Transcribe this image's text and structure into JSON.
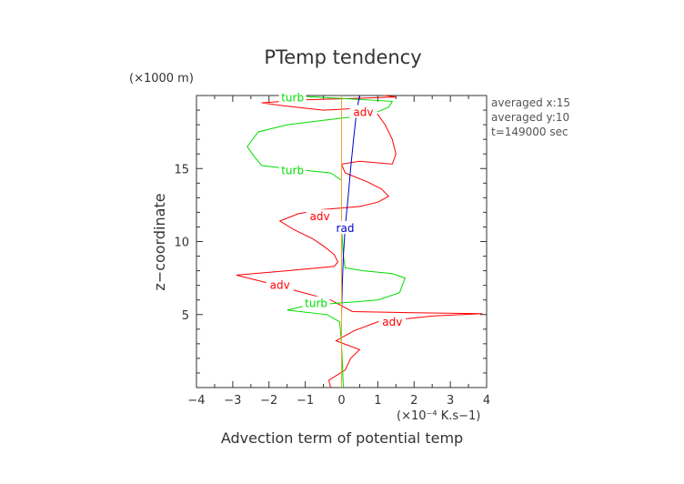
{
  "chart_data": {
    "type": "line",
    "title": "PTemp tendency",
    "xlabel": "Advection term of potential temp",
    "x_unit": "(×10⁻⁴ K.s−1)",
    "ylabel": "z−coordinate",
    "y_unit": "(×1000 m)",
    "xlim": [
      -4,
      4
    ],
    "ylim": [
      0,
      20
    ],
    "xticks": [
      -4,
      -3,
      -2,
      -1,
      0,
      1,
      2,
      3,
      4
    ],
    "yticks": [
      5,
      10,
      15
    ],
    "grid": false,
    "legend": "none",
    "info": [
      "averaged  x:15",
      "averaged  y:10",
      "t=149000 sec"
    ],
    "series": [
      {
        "name": "adv",
        "color": "#ff0000",
        "points": [
          [
            -0.3,
            0.0
          ],
          [
            -0.35,
            0.5
          ],
          [
            0.1,
            1.2
          ],
          [
            0.25,
            2.0
          ],
          [
            0.5,
            2.6
          ],
          [
            -0.15,
            3.2
          ],
          [
            0.35,
            3.9
          ],
          [
            1.0,
            4.5
          ],
          [
            2.5,
            4.9
          ],
          [
            3.88,
            5.06
          ],
          [
            2.0,
            5.12
          ],
          [
            0.3,
            5.2
          ],
          [
            0.0,
            5.6
          ],
          [
            -0.3,
            6.0
          ],
          [
            -1.2,
            6.6
          ],
          [
            -2.1,
            7.2
          ],
          [
            -2.9,
            7.7
          ],
          [
            -1.5,
            8.0
          ],
          [
            -0.2,
            8.3
          ],
          [
            -0.1,
            8.6
          ],
          [
            -0.2,
            9.1
          ],
          [
            -0.5,
            9.7
          ],
          [
            -0.8,
            10.2
          ],
          [
            -1.3,
            10.8
          ],
          [
            -1.7,
            11.4
          ],
          [
            -1.2,
            11.9
          ],
          [
            -0.5,
            12.2
          ],
          [
            0.0,
            12.3
          ],
          [
            0.5,
            12.4
          ],
          [
            1.0,
            12.7
          ],
          [
            1.3,
            13.1
          ],
          [
            1.1,
            13.6
          ],
          [
            0.7,
            14.1
          ],
          [
            0.1,
            14.7
          ],
          [
            0.0,
            15.3
          ],
          [
            0.5,
            15.5
          ],
          [
            1.4,
            15.3
          ],
          [
            1.5,
            16.0
          ],
          [
            1.4,
            17.0
          ],
          [
            1.2,
            18.0
          ],
          [
            1.0,
            18.7
          ],
          [
            0.7,
            19.1
          ],
          [
            0.3,
            19.1
          ],
          [
            -0.5,
            19.0
          ],
          [
            -1.6,
            19.3
          ],
          [
            -2.2,
            19.5
          ],
          [
            -1.0,
            19.7
          ],
          [
            0.3,
            19.8
          ],
          [
            1.5,
            19.9
          ],
          [
            1.2,
            20.0
          ]
        ]
      },
      {
        "name": "turb",
        "color": "#00dd00",
        "points": [
          [
            0.05,
            0.0
          ],
          [
            0.0,
            3.0
          ],
          [
            -0.05,
            4.5
          ],
          [
            -0.4,
            5.0
          ],
          [
            -1.5,
            5.3
          ],
          [
            -1.0,
            5.6
          ],
          [
            0.0,
            5.8
          ],
          [
            1.0,
            6.0
          ],
          [
            1.6,
            6.5
          ],
          [
            1.75,
            7.5
          ],
          [
            1.4,
            7.8
          ],
          [
            0.6,
            8.0
          ],
          [
            0.1,
            8.2
          ],
          [
            0.05,
            9.0
          ],
          [
            0.0,
            11.0
          ],
          [
            0.0,
            13.5
          ],
          [
            0.0,
            14.2
          ],
          [
            -0.3,
            14.7
          ],
          [
            -1.5,
            15.0
          ],
          [
            -2.2,
            15.2
          ],
          [
            -2.4,
            15.8
          ],
          [
            -2.6,
            16.5
          ],
          [
            -2.3,
            17.5
          ],
          [
            -1.5,
            18.0
          ],
          [
            -0.5,
            18.3
          ],
          [
            0.5,
            18.6
          ],
          [
            1.0,
            18.9
          ],
          [
            1.3,
            19.2
          ],
          [
            1.4,
            19.6
          ],
          [
            0.0,
            19.8
          ],
          [
            -1.5,
            20.0
          ]
        ]
      },
      {
        "name": "rad",
        "color": "#0000cc",
        "points": [
          [
            0.0,
            0.0
          ],
          [
            0.0,
            3.0
          ],
          [
            0.0,
            5.0
          ],
          [
            0.02,
            7.0
          ],
          [
            0.05,
            9.0
          ],
          [
            0.1,
            11.0
          ],
          [
            0.18,
            13.0
          ],
          [
            0.25,
            15.0
          ],
          [
            0.33,
            17.0
          ],
          [
            0.42,
            19.0
          ],
          [
            0.5,
            20.0
          ]
        ]
      },
      {
        "color": "#f0a030",
        "points": [
          [
            0.0,
            0.0
          ],
          [
            0.0,
            20.0
          ]
        ]
      }
    ],
    "labels": [
      {
        "text": "turb",
        "series": "turb",
        "x": -1.35,
        "y": 19.85
      },
      {
        "text": "adv",
        "series": "adv",
        "x": 0.6,
        "y": 18.85
      },
      {
        "text": "turb",
        "series": "turb",
        "x": -1.35,
        "y": 14.85
      },
      {
        "text": "adv",
        "series": "adv",
        "x": -0.6,
        "y": 11.7
      },
      {
        "text": "rad",
        "series": "rad",
        "x": 0.1,
        "y": 10.9
      },
      {
        "text": "adv",
        "series": "adv",
        "x": -1.7,
        "y": 7.0
      },
      {
        "text": "turb",
        "series": "turb",
        "x": -0.7,
        "y": 5.75
      },
      {
        "text": "adv",
        "series": "adv",
        "x": 1.4,
        "y": 4.5
      }
    ]
  }
}
